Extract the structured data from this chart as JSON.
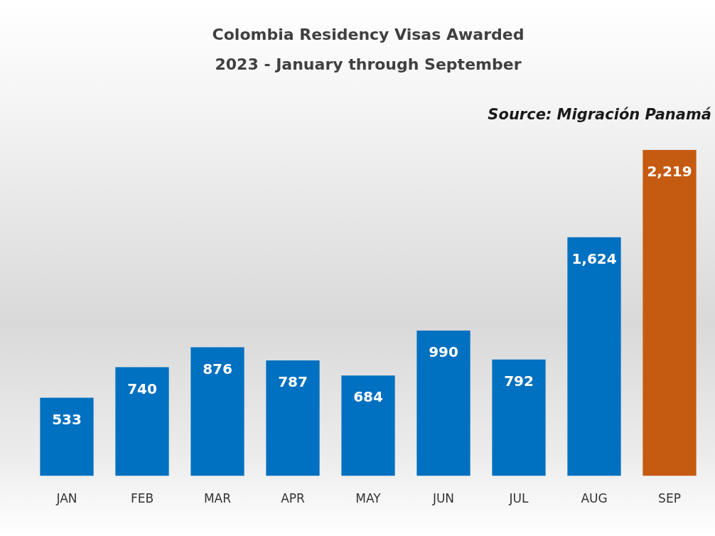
{
  "chart_data": {
    "type": "bar",
    "title": "Colombia Residency Visas Awarded",
    "subtitle": "2023 - January through September",
    "annotations": [
      "Source: Migración Panamá"
    ],
    "categories": [
      "JAN",
      "FEB",
      "MAR",
      "APR",
      "MAY",
      "JUN",
      "JUL",
      "AUG",
      "SEP"
    ],
    "values": [
      533,
      740,
      876,
      787,
      684,
      990,
      792,
      1624,
      2219
    ],
    "colors": [
      "#0070c0",
      "#0070c0",
      "#0070c0",
      "#0070c0",
      "#0070c0",
      "#0070c0",
      "#0070c0",
      "#0070c0",
      "#c55a11"
    ],
    "value_labels": [
      "533",
      "740",
      "876",
      "787",
      "684",
      "990",
      "792",
      "1,624",
      "2,219"
    ],
    "grid": false,
    "legend": false
  }
}
